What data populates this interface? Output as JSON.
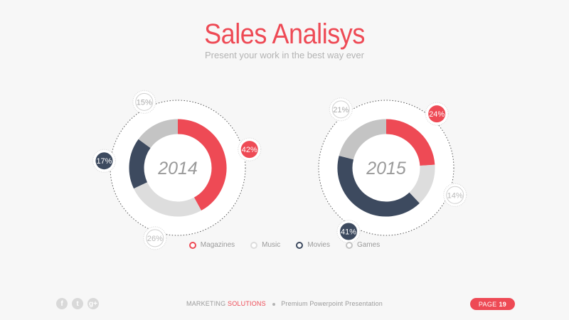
{
  "header": {
    "title": "Sales Analisys",
    "subtitle": "Present your work in the best way ever"
  },
  "colors": {
    "magazines": "#ee4a55",
    "music": "#dddddd",
    "movies": "#3d4a5f",
    "games": "#c4c4c4"
  },
  "chart_data": [
    {
      "type": "pie",
      "center_label": "2014",
      "categories": [
        "Magazines",
        "Music",
        "Movies",
        "Games"
      ],
      "values": [
        42,
        26,
        17,
        15
      ],
      "value_labels": [
        "42%",
        "26%",
        "17%",
        "15%"
      ]
    },
    {
      "type": "pie",
      "center_label": "2015",
      "categories": [
        "Magazines",
        "Music",
        "Movies",
        "Games"
      ],
      "values": [
        24,
        14,
        41,
        21
      ],
      "value_labels": [
        "24%",
        "14%",
        "41%",
        "21%"
      ]
    }
  ],
  "legend": [
    {
      "label": "Magazines",
      "color": "#ee4a55"
    },
    {
      "label": "Music",
      "color": "#dddddd"
    },
    {
      "label": "Movies",
      "color": "#3d4a5f"
    },
    {
      "label": "Games",
      "color": "#c4c4c4"
    }
  ],
  "footer": {
    "social": [
      {
        "icon": "facebook-icon",
        "glyph": "f"
      },
      {
        "icon": "twitter-icon",
        "glyph": "t"
      },
      {
        "icon": "google-plus-icon",
        "glyph": "g+"
      }
    ],
    "brand_part1": "MARKETING",
    "brand_part2": "SOLUTIONS",
    "tagline": "Premium Powerpoint Presentation",
    "page_label": "PAGE",
    "page_number": "19"
  }
}
